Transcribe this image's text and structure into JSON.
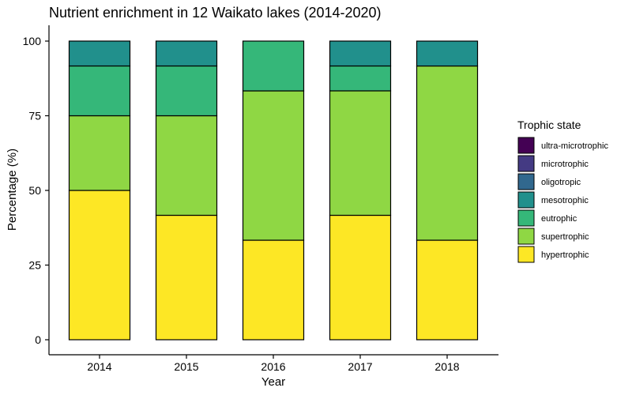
{
  "chart_data": {
    "type": "bar",
    "stacked": true,
    "title": "Nutrient enrichment in 12 Waikato lakes (2014-2020)",
    "xlabel": "Year",
    "ylabel": "Percentage (%)",
    "ylim": [
      0,
      100
    ],
    "yticks": [
      0,
      25,
      50,
      75,
      100
    ],
    "categories": [
      "2014",
      "2015",
      "2016",
      "2017",
      "2018"
    ],
    "legend_title": "Trophic state",
    "legend_position": "right",
    "grid": false,
    "series": [
      {
        "name": "ultra-microtrophic",
        "color": "#440154",
        "values": [
          0,
          0,
          0,
          0,
          0
        ]
      },
      {
        "name": "microtrophic",
        "color": "#443A83",
        "values": [
          0,
          0,
          0,
          0,
          0
        ]
      },
      {
        "name": "oligotropic",
        "color": "#31688E",
        "values": [
          0,
          0,
          0,
          0,
          0
        ]
      },
      {
        "name": "mesotrophic",
        "color": "#21908C",
        "values": [
          8.33,
          8.33,
          0,
          8.33,
          8.33
        ]
      },
      {
        "name": "eutrophic",
        "color": "#35B779",
        "values": [
          16.67,
          16.67,
          16.67,
          8.33,
          0
        ]
      },
      {
        "name": "supertrophic",
        "color": "#8FD744",
        "values": [
          25,
          33.33,
          50,
          41.67,
          58.33
        ]
      },
      {
        "name": "hypertrophic",
        "color": "#FDE725",
        "values": [
          50,
          41.67,
          33.33,
          41.67,
          33.33
        ]
      }
    ]
  }
}
